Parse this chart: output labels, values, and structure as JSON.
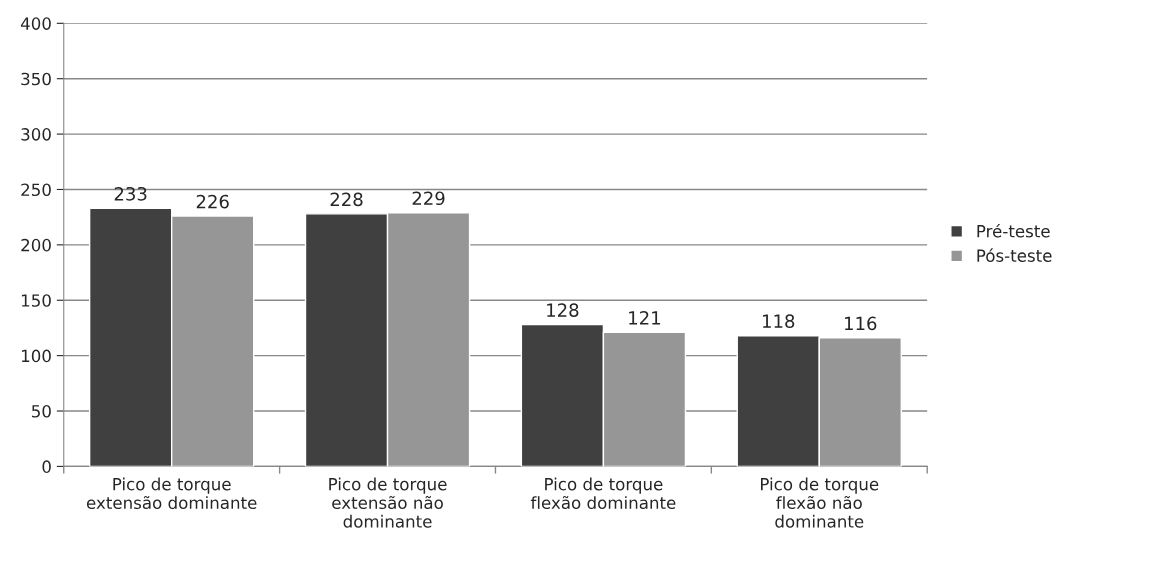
{
  "chart_data": {
    "type": "bar",
    "categories": [
      "Pico de torque\nextensão dominante",
      "Pico de torque\nextensão não\ndominante",
      "Pico de torque\nflexão dominante",
      "Pico de torque\nflexão não\ndominante"
    ],
    "series": [
      {
        "name": "Pré-teste",
        "color": "#404040",
        "values": [
          233,
          228,
          128,
          118
        ]
      },
      {
        "name": "Pós-teste",
        "color": "#969696",
        "values": [
          226,
          229,
          121,
          116
        ]
      }
    ],
    "ylim": [
      0,
      400
    ],
    "yticks": [
      0,
      50,
      100,
      150,
      200,
      250,
      300,
      350,
      400
    ],
    "grid": "y",
    "legend": "right",
    "data_labels": true
  }
}
